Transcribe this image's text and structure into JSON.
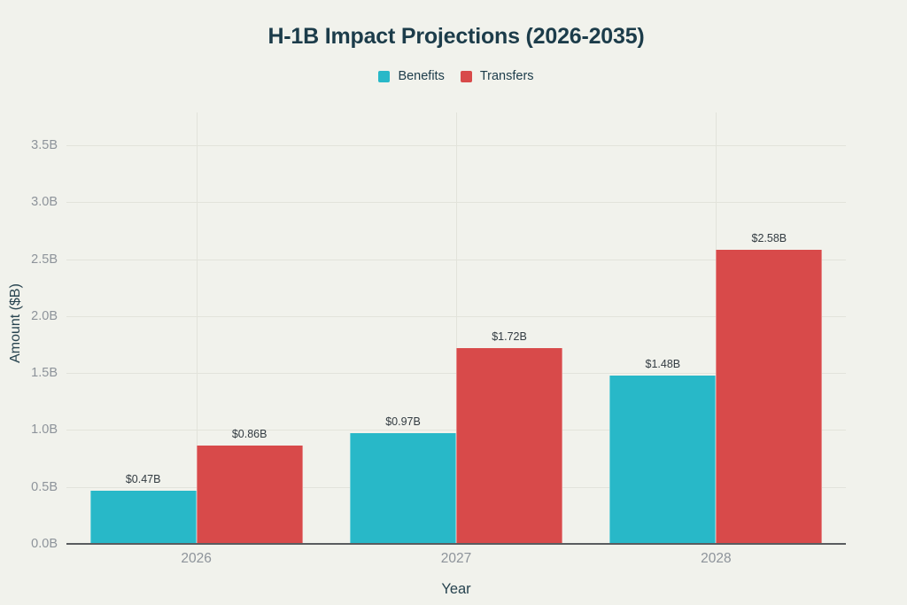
{
  "page": {
    "background": "#f1f2ec"
  },
  "chart_data": {
    "type": "bar",
    "title": "H-1B Impact Projections (2026-2035)",
    "categories": [
      "2026",
      "2027",
      "2028"
    ],
    "series": [
      {
        "name": "Benefits",
        "color": "#28b8c8",
        "values": [
          0.47,
          0.97,
          1.48
        ],
        "data_labels": [
          "$0.47B",
          "$0.97B",
          "$1.48B"
        ]
      },
      {
        "name": "Transfers",
        "color": "#d84a4a",
        "values": [
          0.86,
          1.72,
          2.58
        ],
        "data_labels": [
          "$0.86B",
          "$1.72B",
          "$2.58B"
        ]
      }
    ],
    "xlabel": "Year",
    "ylabel": "Amount ($B)",
    "ylim": [
      0,
      3.5
    ],
    "y_ticks": [
      {
        "value": 0.0,
        "label": "0.0B"
      },
      {
        "value": 0.5,
        "label": "0.5B"
      },
      {
        "value": 1.0,
        "label": "1.0B"
      },
      {
        "value": 1.5,
        "label": "1.5B"
      },
      {
        "value": 2.0,
        "label": "2.0B"
      },
      {
        "value": 2.5,
        "label": "2.5B"
      },
      {
        "value": 3.0,
        "label": "3.0B"
      },
      {
        "value": 3.5,
        "label": "3.5B"
      }
    ],
    "grid": {
      "horizontal": true,
      "vertical_at_categories": true
    },
    "legend_position": "top",
    "colors": {
      "gridline": "#e2e3db",
      "axis_line": "#595c5f",
      "tick_text": "#8d939a",
      "data_label_text": "#323b41",
      "title_text": "#1c3c4a",
      "axis_label_text": "#27434f"
    }
  }
}
